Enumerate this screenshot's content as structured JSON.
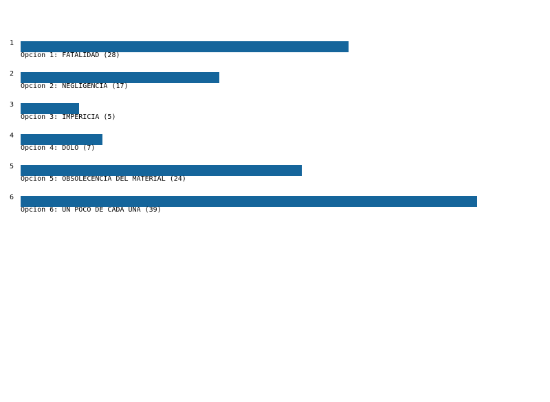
{
  "chart_data": {
    "type": "bar",
    "orientation": "horizontal",
    "bar_color": "#15659b",
    "categories": [
      "1",
      "2",
      "3",
      "4",
      "5",
      "6"
    ],
    "labels": [
      "Opcion 1: FATALIDAD (28)",
      "Opcion 2: NEGLIGENCIA (17)",
      "Opcion 3: IMPERICIA (5)",
      "Opcion 4: DOLO (7)",
      "Opcion 5: OBSOLECENCIA DEL MATERIAL (24)",
      "Opcion 6: UN POCO DE CADA UNA (39)"
    ],
    "values": [
      28,
      17,
      5,
      7,
      24,
      39
    ]
  }
}
